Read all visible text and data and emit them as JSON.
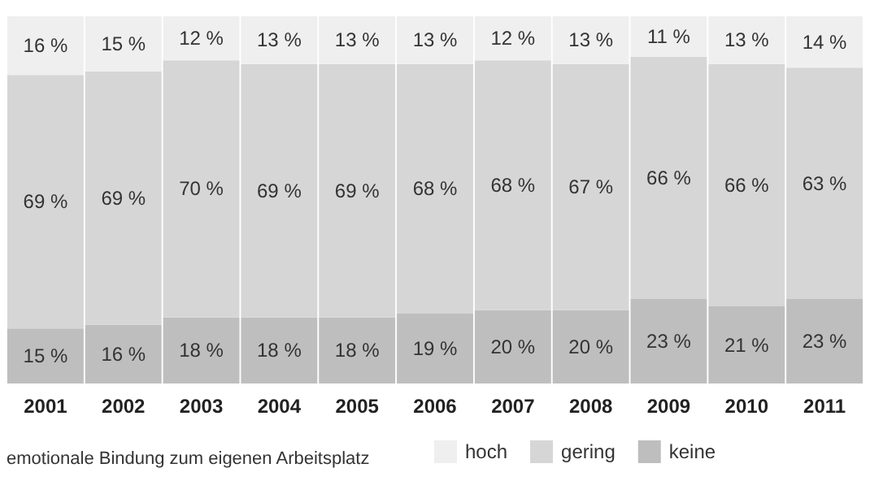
{
  "chart_data": {
    "type": "bar",
    "stacked": true,
    "legend_title": "emotionale Bindung zum eigenen Arbeitsplatz",
    "legend": "bottom",
    "tick_labels": "x",
    "categories": [
      "2001",
      "2002",
      "2003",
      "2004",
      "2005",
      "2006",
      "2007",
      "2008",
      "2009",
      "2010",
      "2011"
    ],
    "series": [
      {
        "name": "keine",
        "color": "#bebebe",
        "values": [
          15,
          16,
          18,
          18,
          18,
          19,
          20,
          20,
          23,
          21,
          23
        ],
        "value_labels": [
          "15 %",
          "16 %",
          "18 %",
          "18 %",
          "18 %",
          "19 %",
          "20 %",
          "20 %",
          "23 %",
          "21 %",
          "23 %"
        ]
      },
      {
        "name": "gering",
        "color": "#d6d6d6",
        "values": [
          69,
          69,
          70,
          69,
          69,
          68,
          68,
          67,
          66,
          66,
          63
        ],
        "value_labels": [
          "69 %",
          "69 %",
          "70 %",
          "69 %",
          "69 %",
          "68 %",
          "68 %",
          "67 %",
          "66 %",
          "66 %",
          "63 %"
        ]
      },
      {
        "name": "hoch",
        "color": "#efefef",
        "values": [
          16,
          15,
          12,
          13,
          13,
          13,
          12,
          13,
          11,
          13,
          14
        ],
        "value_labels": [
          "16 %",
          "15 %",
          "12 %",
          "13 %",
          "13 %",
          "13 %",
          "12 %",
          "13 %",
          "11 %",
          "13 %",
          "14 %"
        ]
      }
    ]
  }
}
